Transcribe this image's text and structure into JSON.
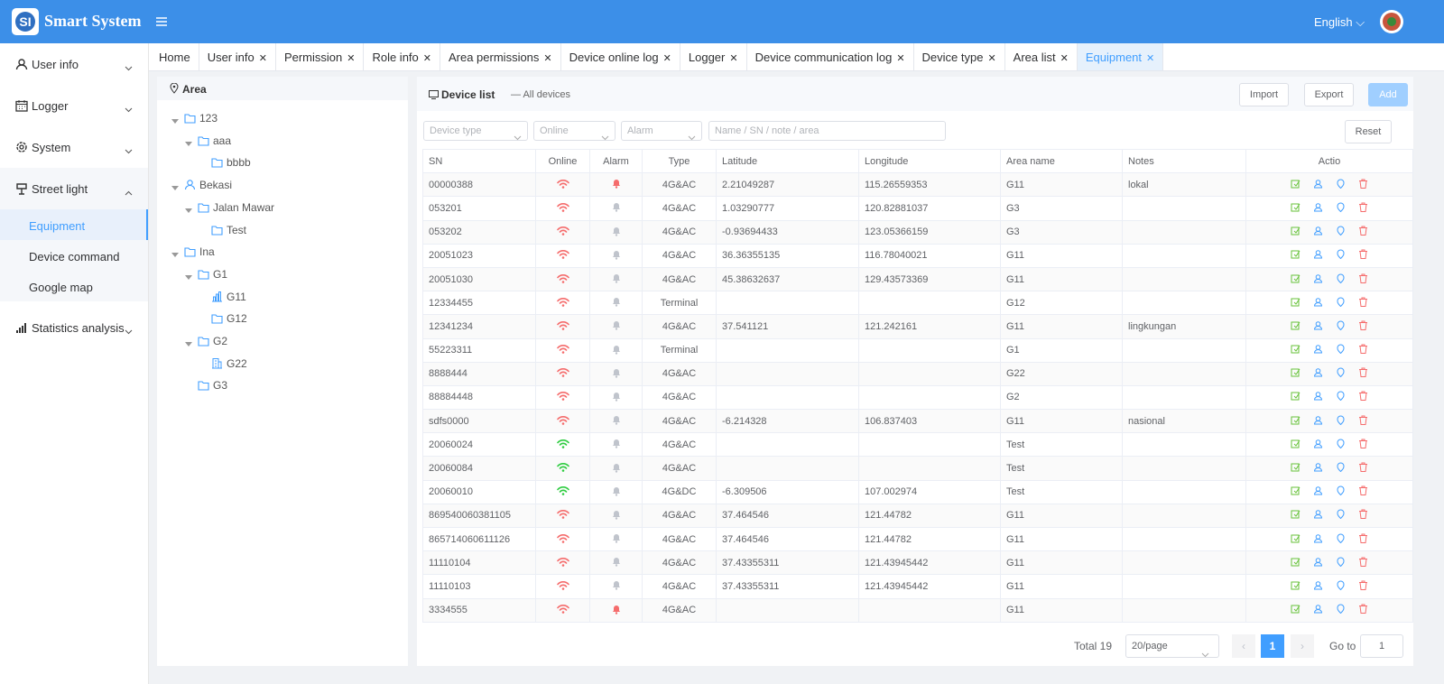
{
  "header": {
    "title": "Smart System",
    "language": "English"
  },
  "sidebar": {
    "items": [
      {
        "label": "User info",
        "icon": "user",
        "expanded": false
      },
      {
        "label": "Logger",
        "icon": "calendar",
        "expanded": false
      },
      {
        "label": "System",
        "icon": "gear",
        "expanded": false
      },
      {
        "label": "Street light",
        "icon": "lamp",
        "expanded": true,
        "children": [
          {
            "label": "Equipment",
            "active": true
          },
          {
            "label": "Device command",
            "active": false
          },
          {
            "label": "Google map",
            "active": false
          }
        ]
      },
      {
        "label": "Statistics analysis",
        "icon": "chart",
        "expanded": false
      }
    ]
  },
  "tabs": [
    {
      "label": "Home",
      "closable": false
    },
    {
      "label": "User info",
      "closable": true
    },
    {
      "label": "Permission",
      "closable": true
    },
    {
      "label": "Role info",
      "closable": true
    },
    {
      "label": "Area permissions",
      "closable": true
    },
    {
      "label": "Device online log",
      "closable": true
    },
    {
      "label": "Logger",
      "closable": true
    },
    {
      "label": "Device communication log",
      "closable": true
    },
    {
      "label": "Device type",
      "closable": true
    },
    {
      "label": "Area list",
      "closable": true
    },
    {
      "label": "Equipment",
      "closable": true,
      "active": true
    }
  ],
  "area_tree": {
    "title": "Area",
    "nodes": [
      {
        "label": "123",
        "depth": 0,
        "icon": "folder",
        "expandable": true
      },
      {
        "label": "aaa",
        "depth": 1,
        "icon": "folder",
        "expandable": true
      },
      {
        "label": "bbbb",
        "depth": 2,
        "icon": "folder",
        "expandable": false
      },
      {
        "label": "Bekasi",
        "depth": 0,
        "icon": "user",
        "expandable": true
      },
      {
        "label": "Jalan Mawar",
        "depth": 1,
        "icon": "folder",
        "expandable": true
      },
      {
        "label": "Test",
        "depth": 2,
        "icon": "folder",
        "expandable": false
      },
      {
        "label": "Ina",
        "depth": 0,
        "icon": "folder",
        "expandable": true
      },
      {
        "label": "G1",
        "depth": 1,
        "icon": "folder",
        "expandable": true
      },
      {
        "label": "G11",
        "depth": 2,
        "icon": "chart",
        "expandable": false
      },
      {
        "label": "G12",
        "depth": 2,
        "icon": "folder",
        "expandable": false
      },
      {
        "label": "G2",
        "depth": 1,
        "icon": "folder",
        "expandable": true
      },
      {
        "label": "G22",
        "depth": 2,
        "icon": "building",
        "expandable": false
      },
      {
        "label": "G3",
        "depth": 1,
        "icon": "folder",
        "expandable": false
      }
    ]
  },
  "device_list": {
    "title": "Device list",
    "subtitle": "— All devices",
    "buttons": [
      "Import",
      "Export",
      "Add"
    ],
    "filters": [
      "Device type",
      "Online",
      "Alarm"
    ],
    "search": "Name / SN / note / area",
    "reset": "Reset",
    "table": {
      "columns": [
        "SN",
        "Online",
        "Alarm",
        "Type",
        "Latitude",
        "Longitude",
        "Area name",
        "Notes",
        "Actio"
      ],
      "rows": [
        {
          "sn": "00000388",
          "online": false,
          "alarm": true,
          "type": "4G&AC",
          "lat": "2.21049287",
          "lon": "115.26559353",
          "area": "G11",
          "notes": "lokal"
        },
        {
          "sn": "053201",
          "online": false,
          "alarm": false,
          "type": "4G&AC",
          "lat": "1.03290777",
          "lon": "120.82881037",
          "area": "G3"
        },
        {
          "sn": "053202",
          "online": false,
          "alarm": false,
          "type": "4G&AC",
          "lat": "-0.93694433",
          "lon": "123.05366159",
          "area": "G3"
        },
        {
          "sn": "20051023",
          "online": false,
          "alarm": false,
          "type": "4G&AC",
          "lat": "36.36355135",
          "lon": "116.78040021",
          "area": "G11"
        },
        {
          "sn": "20051030",
          "online": false,
          "alarm": false,
          "type": "4G&AC",
          "lat": "45.38632637",
          "lon": "129.43573369",
          "area": "G11"
        },
        {
          "sn": "12334455",
          "online": false,
          "alarm": false,
          "type": "Terminal",
          "area": "G12"
        },
        {
          "sn": "12341234",
          "online": false,
          "alarm": false,
          "type": "4G&AC",
          "lat": "37.541121",
          "lon": "121.242161",
          "area": "G11",
          "notes": "lingkungan"
        },
        {
          "sn": "55223311",
          "online": false,
          "alarm": false,
          "type": "Terminal",
          "area": "G1"
        },
        {
          "sn": "8888444",
          "online": false,
          "alarm": false,
          "type": "4G&AC",
          "area": "G22"
        },
        {
          "sn": "88884448",
          "online": false,
          "alarm": false,
          "type": "4G&AC",
          "area": "G2"
        },
        {
          "sn": "sdfs0000",
          "online": false,
          "alarm": false,
          "type": "4G&AC",
          "lat": "-6.214328",
          "lon": "106.837403",
          "area": "G11",
          "notes": "nasional"
        },
        {
          "sn": "20060024",
          "online": true,
          "alarm": false,
          "type": "4G&AC",
          "area": "Test"
        },
        {
          "sn": "20060084",
          "online": true,
          "alarm": false,
          "type": "4G&AC",
          "area": "Test"
        },
        {
          "sn": "20060010",
          "online": true,
          "alarm": false,
          "type": "4G&DC",
          "lat": "-6.309506",
          "lon": "107.002974",
          "area": "Test"
        },
        {
          "sn": "869540060381105",
          "online": false,
          "alarm": false,
          "type": "4G&AC",
          "lat": "37.464546",
          "lon": "121.44782",
          "area": "G11"
        },
        {
          "sn": "865714060611126",
          "online": false,
          "alarm": false,
          "type": "4G&AC",
          "lat": "37.464546",
          "lon": "121.44782",
          "area": "G11"
        },
        {
          "sn": "11110104",
          "online": false,
          "alarm": false,
          "type": "4G&AC",
          "lat": "37.43355311",
          "lon": "121.43945442",
          "area": "G11"
        },
        {
          "sn": "11110103",
          "online": false,
          "alarm": false,
          "type": "4G&AC",
          "lat": "37.43355311",
          "lon": "121.43945442",
          "area": "G11"
        },
        {
          "sn": "3334555",
          "online": false,
          "alarm": true,
          "type": "4G&AC",
          "area": "G11"
        }
      ]
    },
    "pagination": {
      "total": "Total 19",
      "page_size": "20/page",
      "current_page": "1",
      "goto_label": "Go to",
      "goto_value": "1"
    }
  }
}
